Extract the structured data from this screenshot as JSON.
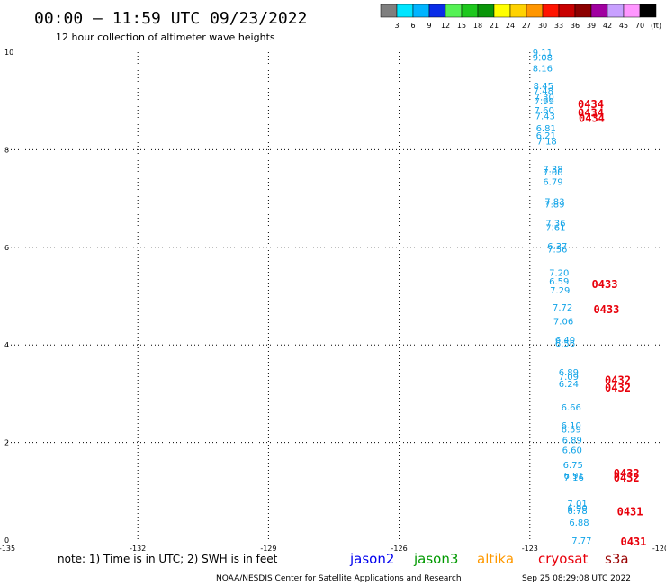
{
  "header": {
    "title": "00:00 – 11:59 UTC 09/23/2022",
    "subtitle": "12 hour collection of altimeter wave heights"
  },
  "color_scale": {
    "labels": [
      "3",
      "6",
      "9",
      "12",
      "15",
      "18",
      "21",
      "24",
      "27",
      "30",
      "33",
      "36",
      "39",
      "42",
      "45",
      "70",
      "(ft)"
    ],
    "colors": [
      "#7f7f7f",
      "#00e5ff",
      "#00b4ff",
      "#0a2de8",
      "#55f255",
      "#1ec81e",
      "#0a960a",
      "#ffff00",
      "#ffd200",
      "#ff9600",
      "#ff1400",
      "#c80000",
      "#8c0000",
      "#a000a0",
      "#c8a0ff",
      "#ff96ff",
      "#000000"
    ]
  },
  "colors": {
    "points": "#12a4e8",
    "pass_labels": "#e8000b",
    "jason2": "#0000ee",
    "jason3": "#009900",
    "altika": "#ff9900",
    "cryosat": "#e8000b",
    "s3a": "#990000"
  },
  "footer": {
    "note": "note: 1) Time is in UTC; 2) SWH is in feet",
    "satellites": [
      {
        "name": "jason2",
        "color": "#0000ee"
      },
      {
        "name": "jason3",
        "color": "#009900"
      },
      {
        "name": "altika",
        "color": "#ff9900"
      },
      {
        "name": "cryosat",
        "color": "#e8000b"
      },
      {
        "name": "s3a",
        "color": "#990000"
      }
    ],
    "credit": "NOAA/NESDIS Center for Satellite Applications and Research",
    "timestamp": "Sep 25 08:29:08 UTC 2022"
  },
  "chart_data": {
    "type": "scatter",
    "title": "00:00 – 11:59 UTC 09/23/2022",
    "subtitle": "12 hour collection of altimeter wave heights",
    "xlim": [
      -135,
      -120
    ],
    "ylim": [
      0,
      10
    ],
    "x_ticks": [
      "-135",
      "-132",
      "-129",
      "-126",
      "-123",
      "-120"
    ],
    "y_ticks": [
      "0",
      "2",
      "4",
      "6",
      "8",
      "10"
    ],
    "grid": true,
    "legend_placement": "bottom",
    "points": [
      {
        "x": -122.94,
        "y": 10.0,
        "label": "9.11"
      },
      {
        "x": -122.94,
        "y": 9.9,
        "label": "9.08"
      },
      {
        "x": -122.94,
        "y": 9.68,
        "label": "8.16"
      },
      {
        "x": -122.92,
        "y": 9.32,
        "label": "8.45"
      },
      {
        "x": -122.92,
        "y": 9.22,
        "label": "7.48"
      },
      {
        "x": -122.9,
        "y": 9.09,
        "label": "7.30"
      },
      {
        "x": -122.9,
        "y": 9.0,
        "label": "7.99"
      },
      {
        "x": -122.9,
        "y": 8.82,
        "label": "7.60"
      },
      {
        "x": -122.88,
        "y": 8.7,
        "label": "7.43"
      },
      {
        "x": -122.86,
        "y": 8.45,
        "label": "6.81"
      },
      {
        "x": -122.86,
        "y": 8.3,
        "label": "6.21"
      },
      {
        "x": -122.84,
        "y": 8.18,
        "label": "7.18"
      },
      {
        "x": -122.7,
        "y": 7.61,
        "label": "7.38"
      },
      {
        "x": -122.7,
        "y": 7.55,
        "label": "7.00"
      },
      {
        "x": -122.7,
        "y": 7.35,
        "label": "6.79"
      },
      {
        "x": -122.66,
        "y": 6.95,
        "label": "7.83"
      },
      {
        "x": -122.66,
        "y": 6.89,
        "label": "7.89"
      },
      {
        "x": -122.64,
        "y": 6.5,
        "label": "7.36"
      },
      {
        "x": -122.64,
        "y": 6.41,
        "label": "7.61"
      },
      {
        "x": -122.6,
        "y": 6.03,
        "label": "6.37"
      },
      {
        "x": -122.6,
        "y": 5.97,
        "label": "7.56"
      },
      {
        "x": -122.56,
        "y": 5.49,
        "label": "7.20"
      },
      {
        "x": -122.56,
        "y": 5.31,
        "label": "6.59"
      },
      {
        "x": -122.54,
        "y": 5.13,
        "label": "7.29"
      },
      {
        "x": -122.48,
        "y": 4.78,
        "label": "7.72"
      },
      {
        "x": -122.46,
        "y": 4.49,
        "label": "7.06"
      },
      {
        "x": -122.42,
        "y": 4.11,
        "label": "6.40"
      },
      {
        "x": -122.42,
        "y": 4.04,
        "label": "6.56"
      },
      {
        "x": -122.34,
        "y": 3.45,
        "label": "6.89"
      },
      {
        "x": -122.34,
        "y": 3.36,
        "label": "7.09"
      },
      {
        "x": -122.34,
        "y": 3.21,
        "label": "6.24"
      },
      {
        "x": -122.28,
        "y": 2.73,
        "label": "6.66"
      },
      {
        "x": -122.28,
        "y": 2.36,
        "label": "6.10"
      },
      {
        "x": -122.28,
        "y": 2.28,
        "label": "6.59"
      },
      {
        "x": -122.26,
        "y": 2.06,
        "label": "6.89"
      },
      {
        "x": -122.26,
        "y": 1.85,
        "label": "6.60"
      },
      {
        "x": -122.24,
        "y": 1.55,
        "label": "6.75"
      },
      {
        "x": -122.22,
        "y": 1.33,
        "label": "6.91"
      },
      {
        "x": -122.22,
        "y": 1.29,
        "label": "7.16"
      },
      {
        "x": -122.14,
        "y": 0.76,
        "label": "7.01"
      },
      {
        "x": -122.14,
        "y": 0.66,
        "label": "6.90"
      },
      {
        "x": -122.14,
        "y": 0.61,
        "label": "6.78"
      },
      {
        "x": -122.1,
        "y": 0.37,
        "label": "6.88"
      },
      {
        "x": -122.04,
        "y": 0.0,
        "label": "7.77"
      }
    ],
    "pass_labels": [
      {
        "x": -121.9,
        "y": 8.95,
        "label": "0434"
      },
      {
        "x": -121.9,
        "y": 8.77,
        "label": "0434"
      },
      {
        "x": -121.88,
        "y": 8.66,
        "label": "0434"
      },
      {
        "x": -121.58,
        "y": 5.26,
        "label": "0433"
      },
      {
        "x": -121.54,
        "y": 4.74,
        "label": "0433"
      },
      {
        "x": -121.28,
        "y": 3.29,
        "label": "0432"
      },
      {
        "x": -121.28,
        "y": 3.14,
        "label": "0432"
      },
      {
        "x": -121.08,
        "y": 1.38,
        "label": "0432"
      },
      {
        "x": -121.08,
        "y": 1.29,
        "label": "0432"
      },
      {
        "x": -121.0,
        "y": 0.6,
        "label": "0431"
      },
      {
        "x": -120.92,
        "y": -0.02,
        "label": "0431"
      }
    ]
  }
}
